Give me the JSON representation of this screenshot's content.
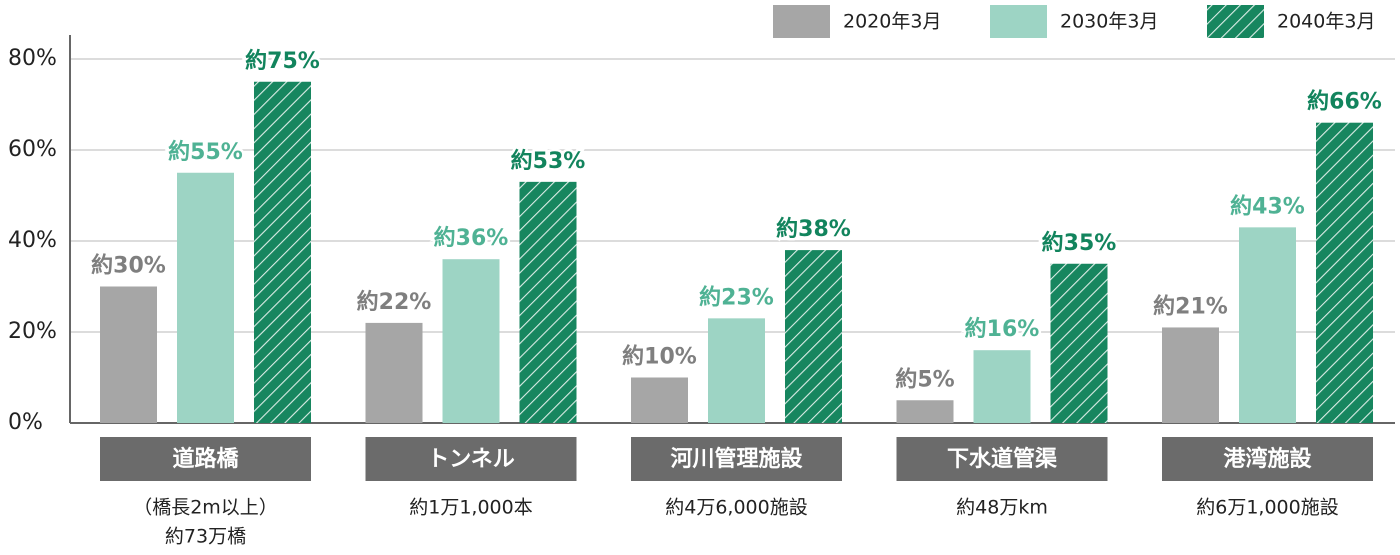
{
  "chart_data": {
    "type": "bar",
    "categories": [
      "道路橋",
      "トンネル",
      "河川管理施設",
      "下水道管渠",
      "港湾施設"
    ],
    "category_notes": [
      [
        "（橋長2m以上）",
        "約73万橋"
      ],
      [
        "約1万1,000本"
      ],
      [
        "約4万6,000施設"
      ],
      [
        "約48万km"
      ],
      [
        "約6万1,000施設"
      ]
    ],
    "series": [
      {
        "name": "2020年3月",
        "color": "#a6a6a6",
        "label_color": "#7f7f7f",
        "pattern": "solid",
        "values": [
          30,
          22,
          10,
          5,
          21
        ],
        "value_labels": [
          "約30%",
          "約22%",
          "約10%",
          "約5%",
          "約21%"
        ]
      },
      {
        "name": "2030年3月",
        "color": "#9dd4c4",
        "label_color": "#4fb294",
        "pattern": "solid",
        "values": [
          55,
          36,
          23,
          16,
          43
        ],
        "value_labels": [
          "約55%",
          "約36%",
          "約23%",
          "約16%",
          "約43%"
        ]
      },
      {
        "name": "2040年3月",
        "color": "#17865f",
        "label_color": "#12845d",
        "pattern": "hatch",
        "values": [
          75,
          53,
          38,
          35,
          66
        ],
        "value_labels": [
          "約75%",
          "約53%",
          "約38%",
          "約35%",
          "約66%"
        ]
      }
    ],
    "ylim": [
      0,
      80
    ],
    "yticks": [
      {
        "value": 0,
        "label": "0%"
      },
      {
        "value": 20,
        "label": "20%"
      },
      {
        "value": 40,
        "label": "40%"
      },
      {
        "value": 60,
        "label": "60%"
      },
      {
        "value": 80,
        "label": "80%"
      }
    ],
    "grid": true,
    "legend": "top-right"
  }
}
